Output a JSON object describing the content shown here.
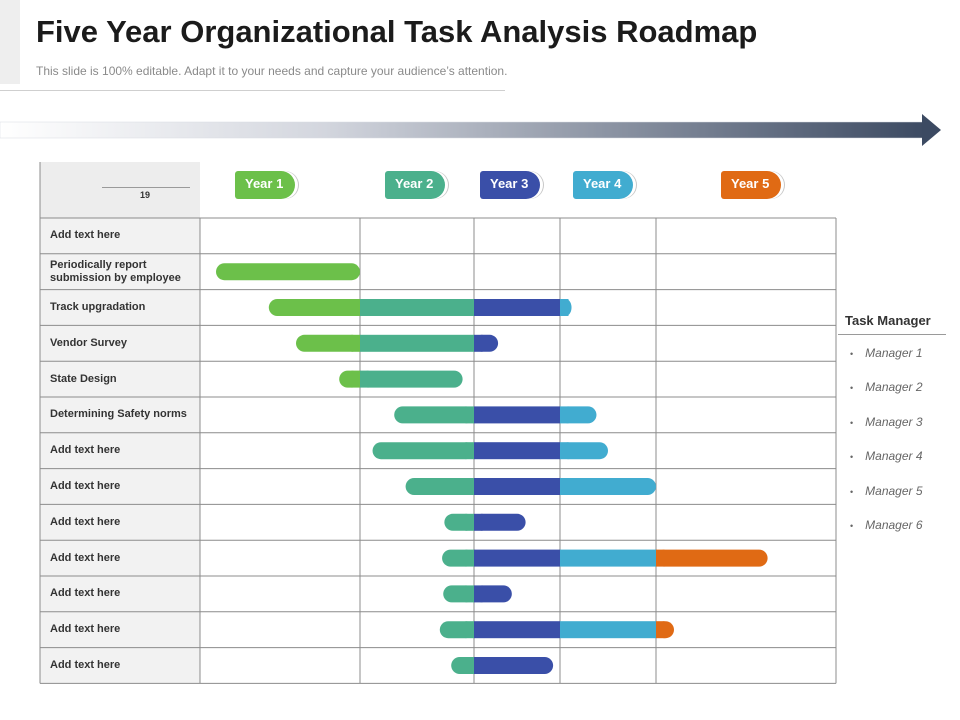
{
  "header": {
    "title": "Five Year Organizational Task Analysis Roadmap",
    "subtitle": "This slide is 100% editable. Adapt it to your needs and capture your audience’s attention."
  },
  "table_header_number": "19",
  "years": [
    {
      "label": "Year 1",
      "color": "#6cc04a"
    },
    {
      "label": "Year 2",
      "color": "#4bb08c"
    },
    {
      "label": "Year 3",
      "color": "#3a4fa8"
    },
    {
      "label": "Year 4",
      "color": "#41acd0"
    },
    {
      "label": "Year 5",
      "color": "#e06a14"
    }
  ],
  "legend": {
    "title": "Task Manager",
    "items": [
      "Manager 1",
      "Manager 2",
      "Manager 3",
      "Manager 4",
      "Manager 5",
      "Manager 6"
    ]
  },
  "chart_data": {
    "type": "gantt",
    "columns": [
      "Year 1",
      "Year 2",
      "Year 3",
      "Year 4",
      "Year 5"
    ],
    "tasks": [
      {
        "label": "Add text here",
        "segments": []
      },
      {
        "label": "Periodically report submission by employee",
        "segments": [
          {
            "year": 1,
            "start": 0.1,
            "end": 1.0
          }
        ]
      },
      {
        "label": "Track upgradation",
        "segments": [
          {
            "year": 1,
            "start": 0.43,
            "end": 1.0
          },
          {
            "year": 2,
            "start": 0.0,
            "end": 1.0
          },
          {
            "year": 3,
            "start": 0.0,
            "end": 1.0
          },
          {
            "year": 4,
            "start": 0.0,
            "end": 0.12
          }
        ]
      },
      {
        "label": "Vendor Survey",
        "segments": [
          {
            "year": 1,
            "start": 0.6,
            "end": 1.0
          },
          {
            "year": 2,
            "start": 0.0,
            "end": 1.0
          },
          {
            "year": 3,
            "start": 0.0,
            "end": 0.28
          }
        ]
      },
      {
        "label": "State Design",
        "segments": [
          {
            "year": 1,
            "start": 0.87,
            "end": 1.0
          },
          {
            "year": 2,
            "start": 0.0,
            "end": 0.9
          }
        ]
      },
      {
        "label": "Determining Safety norms",
        "segments": [
          {
            "year": 2,
            "start": 0.3,
            "end": 1.0
          },
          {
            "year": 3,
            "start": 0.0,
            "end": 1.0
          },
          {
            "year": 4,
            "start": 0.0,
            "end": 0.38
          }
        ]
      },
      {
        "label": "Add text here",
        "segments": [
          {
            "year": 2,
            "start": 0.11,
            "end": 1.0
          },
          {
            "year": 3,
            "start": 0.0,
            "end": 1.0
          },
          {
            "year": 4,
            "start": 0.0,
            "end": 0.5
          }
        ]
      },
      {
        "label": "Add text here",
        "segments": [
          {
            "year": 2,
            "start": 0.4,
            "end": 1.0
          },
          {
            "year": 3,
            "start": 0.0,
            "end": 1.0
          },
          {
            "year": 4,
            "start": 0.0,
            "end": 1.0
          }
        ]
      },
      {
        "label": "Add text here",
        "segments": [
          {
            "year": 2,
            "start": 0.74,
            "end": 1.0
          },
          {
            "year": 3,
            "start": 0.0,
            "end": 0.6
          }
        ]
      },
      {
        "label": "Add text here",
        "segments": [
          {
            "year": 2,
            "start": 0.72,
            "end": 1.0
          },
          {
            "year": 3,
            "start": 0.0,
            "end": 1.0
          },
          {
            "year": 4,
            "start": 0.0,
            "end": 1.0
          },
          {
            "year": 5,
            "start": 0.0,
            "end": 0.62
          }
        ]
      },
      {
        "label": "Add text here",
        "segments": [
          {
            "year": 2,
            "start": 0.73,
            "end": 1.0
          },
          {
            "year": 3,
            "start": 0.0,
            "end": 0.44
          }
        ]
      },
      {
        "label": "Add text here",
        "segments": [
          {
            "year": 2,
            "start": 0.7,
            "end": 1.0
          },
          {
            "year": 3,
            "start": 0.0,
            "end": 1.0
          },
          {
            "year": 4,
            "start": 0.0,
            "end": 1.0
          },
          {
            "year": 5,
            "start": 0.0,
            "end": 0.1
          }
        ]
      },
      {
        "label": "Add text here",
        "segments": [
          {
            "year": 2,
            "start": 0.8,
            "end": 1.0
          },
          {
            "year": 3,
            "start": 0.0,
            "end": 0.92
          }
        ]
      }
    ]
  }
}
